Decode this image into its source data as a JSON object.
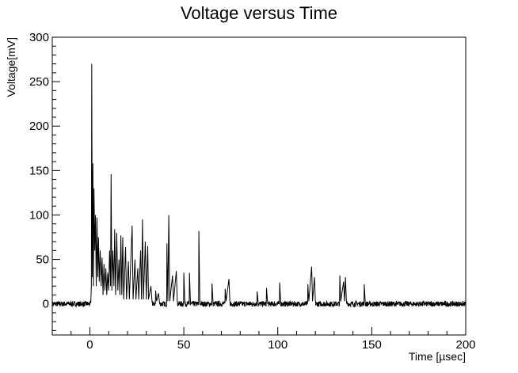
{
  "chart_data": {
    "type": "line",
    "title": "Voltage versus Time",
    "xlabel": "Time [µsec]",
    "ylabel": "Voltage[mV]",
    "xlim": [
      -20,
      200
    ],
    "ylim": [
      -35,
      300
    ],
    "x_ticks": [
      0,
      50,
      100,
      150,
      200
    ],
    "y_ticks": [
      0,
      50,
      100,
      150,
      200,
      250,
      300
    ],
    "grid": false,
    "baseline_noise_mV": 3,
    "series": [
      {
        "points": [
          [
            -20,
            0
          ],
          [
            0,
            0
          ],
          [
            0.5,
            2
          ],
          [
            0.8,
            20
          ],
          [
            1.0,
            270
          ],
          [
            1.3,
            30
          ],
          [
            1.6,
            158
          ],
          [
            1.9,
            20
          ],
          [
            2.2,
            130
          ],
          [
            2.6,
            60
          ],
          [
            3.0,
            100
          ],
          [
            3.4,
            20
          ],
          [
            3.8,
            97
          ],
          [
            4.2,
            30
          ],
          [
            4.6,
            75
          ],
          [
            5.0,
            25
          ],
          [
            5.5,
            60
          ],
          [
            6.0,
            20
          ],
          [
            6.5,
            52
          ],
          [
            7.0,
            10
          ],
          [
            7.5,
            45
          ],
          [
            8.0,
            15
          ],
          [
            8.5,
            40
          ],
          [
            9.0,
            10
          ],
          [
            9.5,
            35
          ],
          [
            10.0,
            15
          ],
          [
            10.5,
            60
          ],
          [
            11.0,
            20
          ],
          [
            11.3,
            146
          ],
          [
            11.7,
            15
          ],
          [
            12.2,
            60
          ],
          [
            12.8,
            20
          ],
          [
            13.2,
            84
          ],
          [
            13.7,
            10
          ],
          [
            14.3,
            80
          ],
          [
            14.9,
            15
          ],
          [
            15.5,
            50
          ],
          [
            16.0,
            10
          ],
          [
            16.5,
            77
          ],
          [
            17.0,
            10
          ],
          [
            17.5,
            75
          ],
          [
            18.0,
            5
          ],
          [
            19.0,
            64
          ],
          [
            19.5,
            5
          ],
          [
            20.5,
            48
          ],
          [
            21.0,
            5
          ],
          [
            22.5,
            88
          ],
          [
            23.0,
            5
          ],
          [
            24.0,
            50
          ],
          [
            24.5,
            5
          ],
          [
            25.5,
            40
          ],
          [
            26.0,
            5
          ],
          [
            27.0,
            60
          ],
          [
            27.5,
            5
          ],
          [
            28.0,
            95
          ],
          [
            28.5,
            5
          ],
          [
            29.5,
            70
          ],
          [
            30.0,
            5
          ],
          [
            30.8,
            65
          ],
          [
            31.2,
            5
          ],
          [
            32.5,
            20
          ],
          [
            33.0,
            5
          ],
          [
            35.0,
            15
          ],
          [
            35.5,
            3
          ],
          [
            36.5,
            12
          ],
          [
            37.0,
            3
          ],
          [
            41.0,
            68
          ],
          [
            41.5,
            3
          ],
          [
            42.0,
            100
          ],
          [
            42.5,
            3
          ],
          [
            44.0,
            32
          ],
          [
            44.5,
            3
          ],
          [
            46.0,
            37
          ],
          [
            46.5,
            3
          ],
          [
            50.0,
            35
          ],
          [
            50.5,
            3
          ],
          [
            53.0,
            35
          ],
          [
            53.5,
            3
          ],
          [
            58.0,
            82
          ],
          [
            58.5,
            3
          ],
          [
            65.0,
            23
          ],
          [
            65.5,
            3
          ],
          [
            72.0,
            17
          ],
          [
            72.5,
            3
          ],
          [
            74.0,
            28
          ],
          [
            74.5,
            3
          ],
          [
            89.0,
            14
          ],
          [
            89.5,
            3
          ],
          [
            94.0,
            18
          ],
          [
            94.5,
            3
          ],
          [
            101.0,
            24
          ],
          [
            101.5,
            3
          ],
          [
            116.0,
            22
          ],
          [
            116.5,
            3
          ],
          [
            118.0,
            42
          ],
          [
            118.5,
            3
          ],
          [
            119.5,
            30
          ],
          [
            120.0,
            3
          ],
          [
            133.0,
            32
          ],
          [
            133.5,
            3
          ],
          [
            135.0,
            25
          ],
          [
            135.5,
            3
          ],
          [
            136.0,
            30
          ],
          [
            136.5,
            3
          ],
          [
            146.0,
            22
          ],
          [
            146.5,
            3
          ],
          [
            200,
            0
          ]
        ]
      }
    ]
  }
}
